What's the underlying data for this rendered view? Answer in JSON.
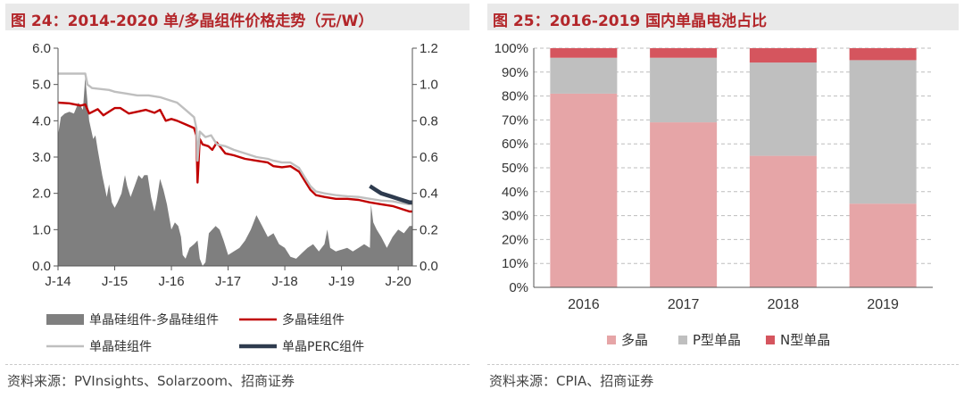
{
  "left_panel": {
    "title": "图 24：2014-2020 单/多晶组件价格走势（元/W）",
    "source": "资料来源：PVInsights、Solarzoom、招商证券"
  },
  "right_panel": {
    "title": "图 25：2016-2019 国内单晶电池占比",
    "source": "资料来源：CPIA、招商证券"
  },
  "chart_data": [
    {
      "type": "line",
      "x_ticks": [
        "J-14",
        "J-15",
        "J-16",
        "J-17",
        "J-18",
        "J-19",
        "J-20"
      ],
      "x_range": [
        2014.0,
        2020.25
      ],
      "y_left_ticks": [
        "0.0",
        "1.0",
        "2.0",
        "3.0",
        "4.0",
        "5.0",
        "6.0"
      ],
      "y_left_range": [
        0,
        6
      ],
      "y_right_ticks": [
        "0.0",
        "0.2",
        "0.4",
        "0.6",
        "0.8",
        "1.0",
        "1.2"
      ],
      "y_right_range": [
        0,
        1.2
      ],
      "series": [
        {
          "name": "单晶硅组件-多晶硅组件",
          "kind": "area",
          "axis": "right",
          "color": "#7f7f7f",
          "x": [
            2014.0,
            2014.05,
            2014.12,
            2014.2,
            2014.28,
            2014.36,
            2014.44,
            2014.48,
            2014.55,
            2014.62,
            2014.66,
            2014.7,
            2014.78,
            2014.86,
            2014.9,
            2014.95,
            2015.0,
            2015.05,
            2015.12,
            2015.18,
            2015.22,
            2015.28,
            2015.35,
            2015.42,
            2015.48,
            2015.52,
            2015.58,
            2015.64,
            2015.7,
            2015.74,
            2015.8,
            2015.86,
            2015.92,
            2016.0,
            2016.06,
            2016.12,
            2016.17,
            2016.2,
            2016.25,
            2016.32,
            2016.4,
            2016.46,
            2016.5,
            2016.55,
            2016.6,
            2016.66,
            2016.72,
            2016.78,
            2016.85,
            2016.92,
            2017.0,
            2017.1,
            2017.2,
            2017.3,
            2017.4,
            2017.5,
            2017.6,
            2017.7,
            2017.8,
            2017.9,
            2018.0,
            2018.1,
            2018.2,
            2018.3,
            2018.4,
            2018.5,
            2018.6,
            2018.7,
            2018.75,
            2018.8,
            2018.9,
            2019.0,
            2019.1,
            2019.2,
            2019.3,
            2019.4,
            2019.5,
            2019.52,
            2019.56,
            2019.62,
            2019.7,
            2019.8,
            2019.9,
            2020.0,
            2020.1,
            2020.2,
            2020.25
          ],
          "values": [
            0.72,
            0.82,
            0.84,
            0.85,
            0.84,
            0.9,
            0.86,
            1.04,
            0.8,
            0.7,
            0.72,
            0.64,
            0.5,
            0.38,
            0.45,
            0.35,
            0.32,
            0.35,
            0.4,
            0.5,
            0.44,
            0.38,
            0.44,
            0.5,
            0.48,
            0.5,
            0.5,
            0.38,
            0.3,
            0.36,
            0.48,
            0.42,
            0.34,
            0.2,
            0.24,
            0.22,
            0.16,
            0.06,
            0.04,
            0.1,
            0.12,
            0.14,
            0.04,
            0.0,
            0.02,
            0.18,
            0.2,
            0.22,
            0.2,
            0.14,
            0.06,
            0.08,
            0.1,
            0.14,
            0.2,
            0.28,
            0.22,
            0.16,
            0.18,
            0.12,
            0.1,
            0.05,
            0.04,
            0.07,
            0.1,
            0.12,
            0.08,
            0.12,
            0.2,
            0.1,
            0.08,
            0.09,
            0.1,
            0.08,
            0.1,
            0.12,
            0.1,
            0.34,
            0.24,
            0.2,
            0.16,
            0.1,
            0.16,
            0.2,
            0.18,
            0.22,
            0.22
          ]
        },
        {
          "name": "多晶硅组件",
          "kind": "line",
          "axis": "left",
          "color": "#c00000",
          "x": [
            2014.0,
            2014.2,
            2014.4,
            2014.48,
            2014.55,
            2014.7,
            2014.8,
            2014.95,
            2015.0,
            2015.1,
            2015.25,
            2015.4,
            2015.55,
            2015.7,
            2015.8,
            2015.9,
            2016.0,
            2016.1,
            2016.25,
            2016.4,
            2016.44,
            2016.46,
            2016.5,
            2016.55,
            2016.65,
            2016.72,
            2016.8,
            2016.95,
            2017.1,
            2017.3,
            2017.5,
            2017.7,
            2017.8,
            2017.95,
            2018.1,
            2018.25,
            2018.35,
            2018.45,
            2018.55,
            2018.7,
            2018.9,
            2019.1,
            2019.3,
            2019.5,
            2019.7,
            2019.9,
            2020.0,
            2020.1,
            2020.2,
            2020.25
          ],
          "values": [
            4.5,
            4.48,
            4.42,
            4.45,
            4.2,
            4.32,
            4.15,
            4.3,
            4.35,
            4.35,
            4.2,
            4.25,
            4.3,
            4.22,
            4.3,
            4.0,
            4.05,
            4.0,
            3.9,
            3.8,
            3.6,
            2.3,
            3.5,
            3.35,
            3.3,
            3.2,
            3.4,
            3.1,
            3.05,
            2.95,
            2.9,
            2.85,
            2.75,
            2.72,
            2.75,
            2.6,
            2.35,
            2.1,
            1.95,
            1.9,
            1.85,
            1.85,
            1.82,
            1.75,
            1.7,
            1.65,
            1.6,
            1.55,
            1.5,
            1.5
          ]
        },
        {
          "name": "单晶硅组件",
          "kind": "line",
          "axis": "left",
          "color": "#bfbfbf",
          "x": [
            2014.0,
            2014.3,
            2014.48,
            2014.52,
            2014.6,
            2014.9,
            2015.0,
            2015.2,
            2015.4,
            2015.6,
            2015.8,
            2016.0,
            2016.1,
            2016.25,
            2016.4,
            2016.44,
            2016.46,
            2016.5,
            2016.6,
            2016.7,
            2016.8,
            2016.95,
            2017.1,
            2017.3,
            2017.5,
            2017.7,
            2017.8,
            2017.95,
            2018.1,
            2018.25,
            2018.35,
            2018.45,
            2018.55,
            2018.7,
            2018.9,
            2019.1,
            2019.3,
            2019.5,
            2019.7,
            2019.9,
            2020.0,
            2020.1,
            2020.2,
            2020.25
          ],
          "values": [
            5.3,
            5.3,
            5.3,
            5.0,
            4.9,
            4.85,
            4.8,
            4.75,
            4.7,
            4.7,
            4.65,
            4.55,
            4.5,
            4.3,
            4.1,
            3.8,
            2.9,
            3.7,
            3.55,
            3.6,
            3.35,
            3.3,
            3.2,
            3.1,
            3.0,
            2.95,
            2.9,
            2.85,
            2.85,
            2.7,
            2.45,
            2.2,
            2.05,
            2.0,
            1.95,
            1.92,
            1.9,
            1.85,
            1.8,
            1.78,
            1.75,
            1.72,
            1.7,
            1.7
          ]
        },
        {
          "name": "单晶PERC组件",
          "kind": "line",
          "axis": "left",
          "color": "#2e3b4e",
          "x": [
            2019.5,
            2019.6,
            2019.7,
            2019.8,
            2019.9,
            2020.0,
            2020.1,
            2020.2,
            2020.25
          ],
          "values": [
            2.2,
            2.1,
            2.0,
            1.95,
            1.9,
            1.85,
            1.8,
            1.75,
            1.75
          ]
        }
      ]
    },
    {
      "type": "bar",
      "stacked": true,
      "categories": [
        "2016",
        "2017",
        "2018",
        "2019"
      ],
      "y_ticks": [
        "0%",
        "10%",
        "20%",
        "30%",
        "40%",
        "50%",
        "60%",
        "70%",
        "80%",
        "90%",
        "100%"
      ],
      "ylim": [
        0,
        100
      ],
      "grid": true,
      "legend_position": "bottom",
      "series": [
        {
          "name": "多晶",
          "color": "#e6a5a7",
          "values": [
            81,
            69,
            55,
            35
          ]
        },
        {
          "name": "P型单晶",
          "color": "#bfbfbf",
          "values": [
            15,
            27,
            39,
            60
          ]
        },
        {
          "name": "N型单晶",
          "color": "#d5555e",
          "values": [
            4,
            4,
            6,
            5
          ]
        }
      ]
    }
  ]
}
